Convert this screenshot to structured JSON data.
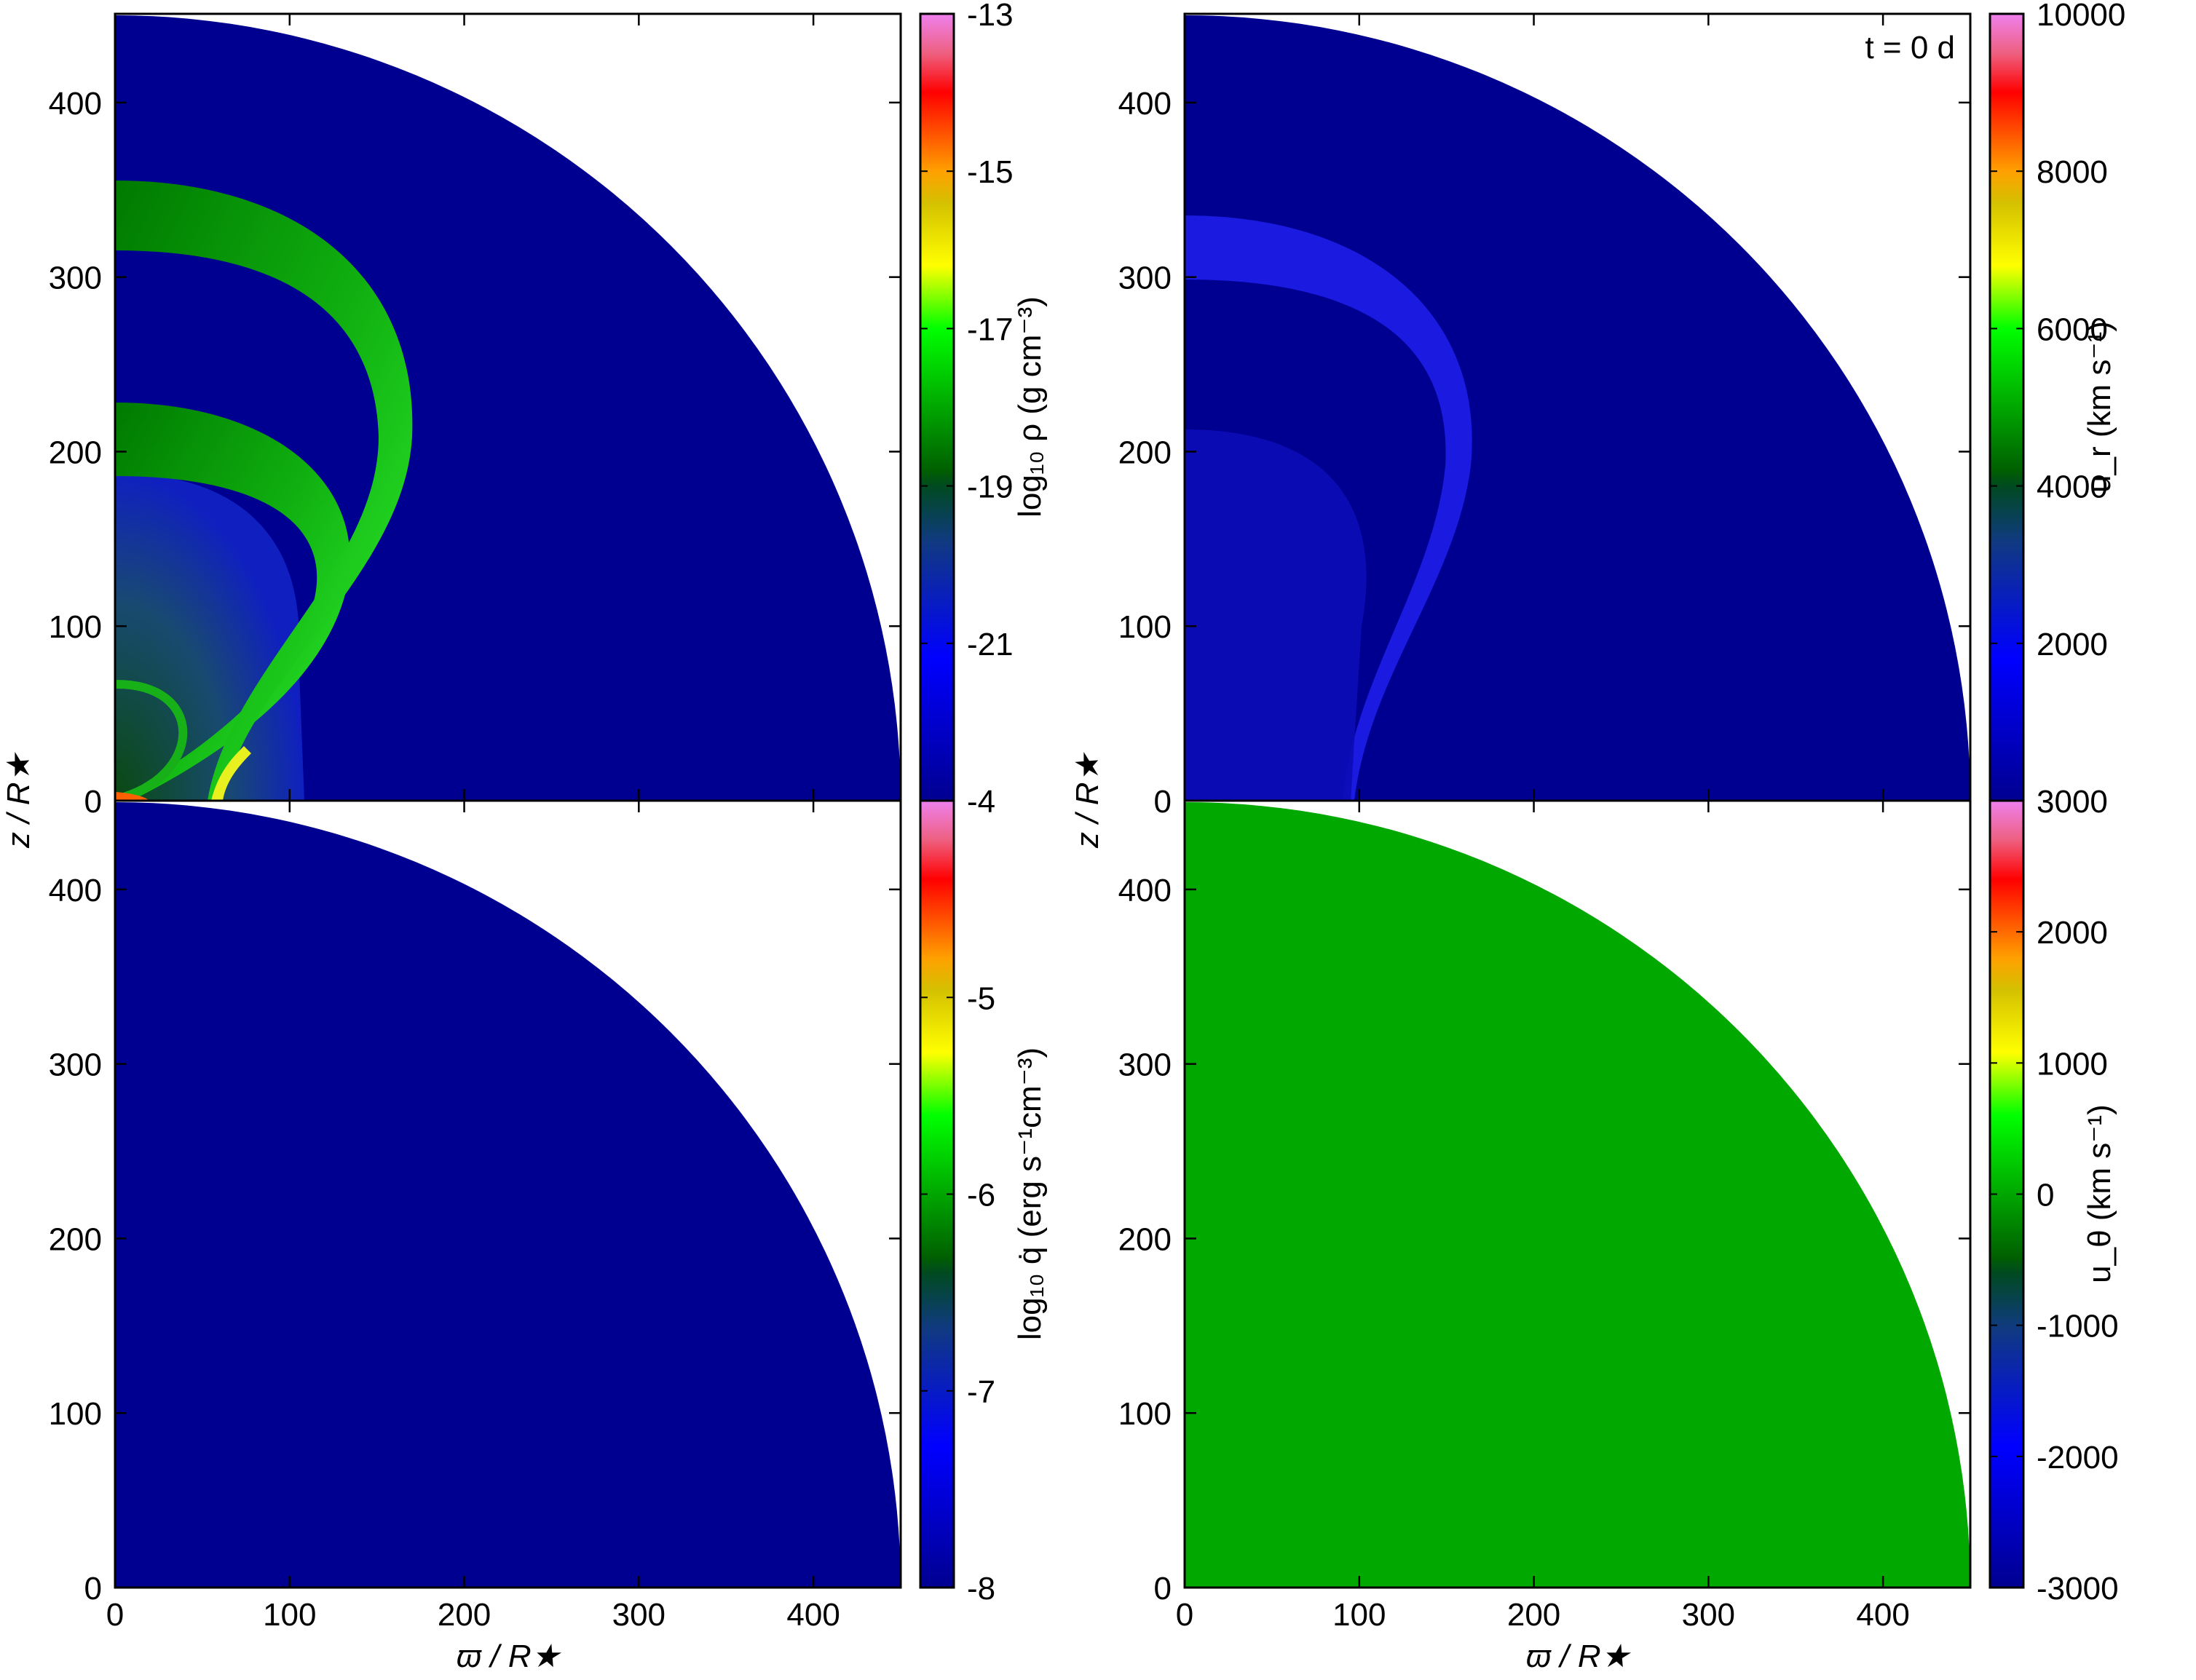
{
  "annotation": "t = 0 d",
  "axes": {
    "xlabel": "ϖ / R★",
    "ylabel": "z / R★",
    "xticks": [
      "0",
      "100",
      "200",
      "300",
      "400"
    ],
    "yticks": [
      "0",
      "100",
      "200",
      "300",
      "400"
    ],
    "range": [
      0,
      450
    ]
  },
  "colors": {
    "background": "#000090",
    "ut_fill": "#00a800",
    "ur_shell": "#1a1ae0"
  },
  "chart_data": [
    {
      "type": "heatmap",
      "panel": "top-left",
      "quantity": "log10 density",
      "colorbar_label": "log₁₀ ρ (g cm⁻³)",
      "clim": [
        -23,
        -13
      ],
      "cticks": [
        "-13",
        "-15",
        "-17",
        "-19",
        "-21"
      ],
      "cvals": [
        -13,
        -15,
        -17,
        -19,
        -21
      ]
    },
    {
      "type": "heatmap",
      "panel": "bottom-left",
      "quantity": "log10 heating rate",
      "colorbar_label": "log₁₀ q̇ (erg s⁻¹cm⁻³)",
      "clim": [
        -8,
        -4
      ],
      "cticks": [
        "-4",
        "-5",
        "-6",
        "-7",
        "-8"
      ],
      "cvals": [
        -4,
        -5,
        -6,
        -7,
        -8
      ]
    },
    {
      "type": "heatmap",
      "panel": "top-right",
      "quantity": "radial velocity",
      "colorbar_label": "u_r (km s⁻¹)",
      "clim": [
        0,
        10000
      ],
      "cticks": [
        "10000",
        "8000",
        "6000",
        "4000",
        "2000"
      ],
      "cvals": [
        10000,
        8000,
        6000,
        4000,
        2000
      ]
    },
    {
      "type": "heatmap",
      "panel": "bottom-right",
      "quantity": "polar velocity",
      "colorbar_label": "u_θ (km s⁻¹)",
      "clim": [
        -3000,
        3000
      ],
      "cticks": [
        "3000",
        "2000",
        "1000",
        "0",
        "-1000",
        "-2000",
        "-3000"
      ],
      "cvals": [
        3000,
        2000,
        1000,
        0,
        -1000,
        -2000,
        -3000
      ]
    }
  ]
}
